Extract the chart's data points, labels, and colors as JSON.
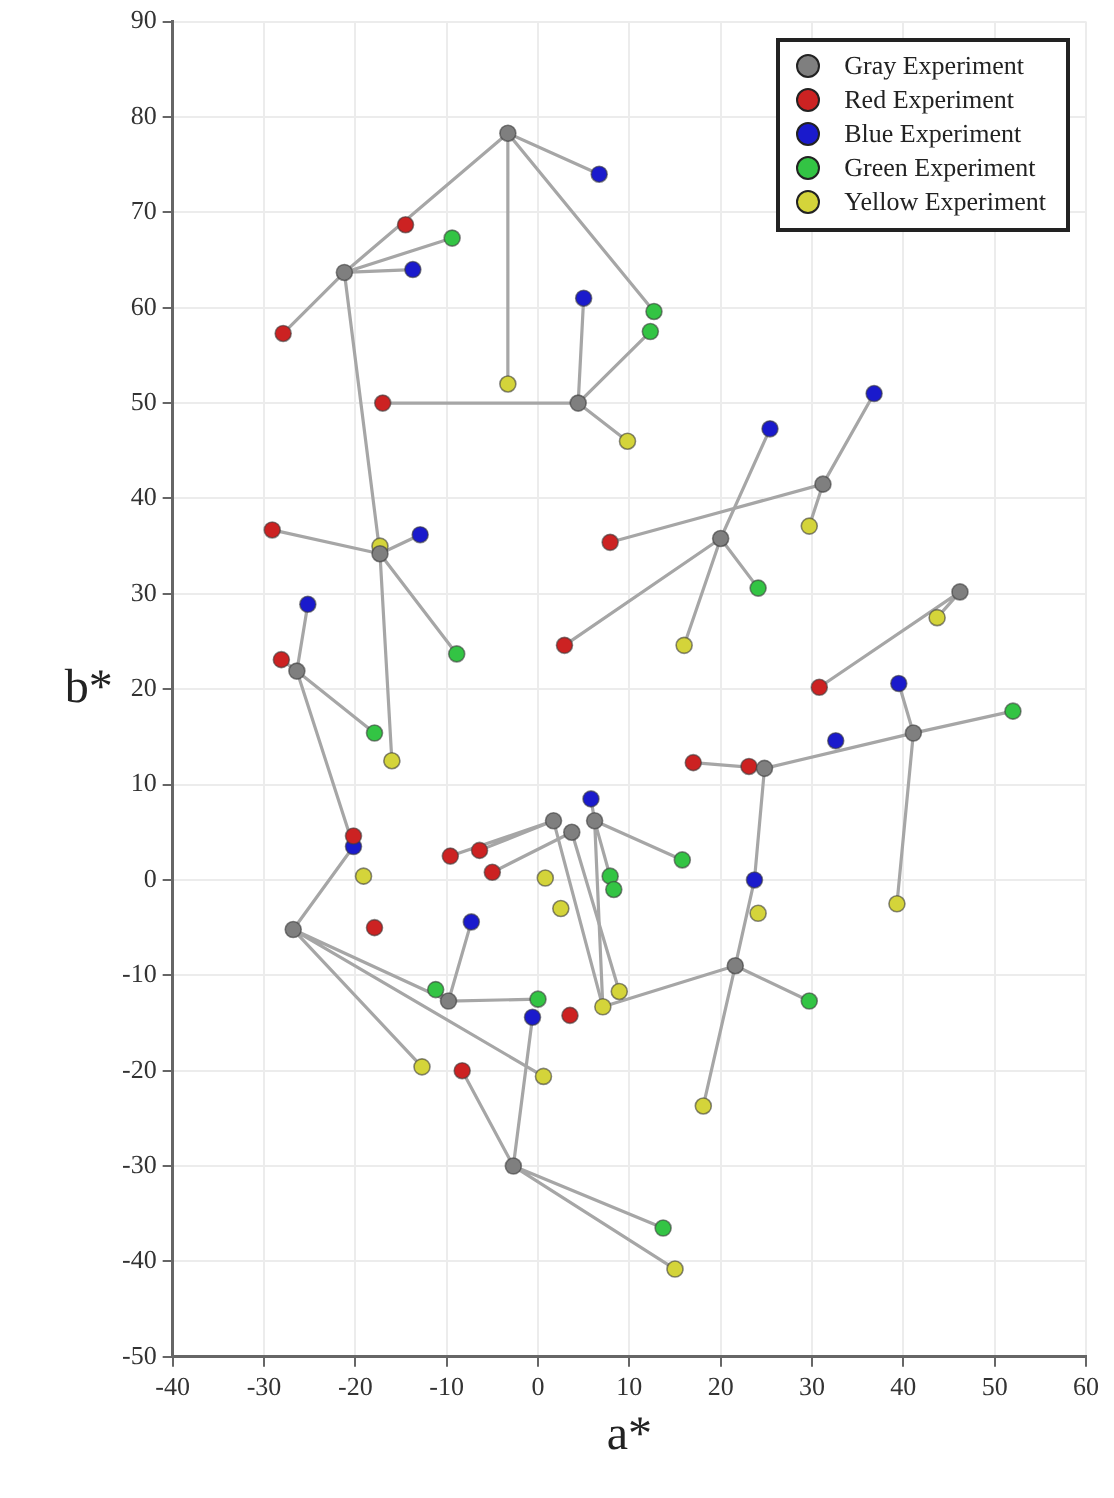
{
  "chart_data": {
    "type": "scatter",
    "xlabel": "a*",
    "ylabel": "b*",
    "xlim": [
      -40,
      60
    ],
    "xticks": [
      -40,
      -30,
      -20,
      -10,
      0,
      10,
      20,
      30,
      40,
      50,
      60
    ],
    "ylim": [
      -50,
      90
    ],
    "yticks": [
      -50,
      -40,
      -30,
      -20,
      -10,
      0,
      10,
      20,
      30,
      40,
      50,
      60,
      70,
      80,
      90
    ],
    "grid": true,
    "legend": "top right",
    "marker": "circle",
    "series": [
      {
        "type": "line",
        "marker": "none",
        "color": "#a6a6a6",
        "x": [
          -3.3,
          6.7,
          -3.3,
          -3.3,
          -3.3,
          12.7,
          -3.3,
          -21.2
        ],
        "values": [
          78.3,
          74,
          78.3,
          52,
          78.3,
          59.6,
          78.3,
          63.7
        ]
      },
      {
        "type": "line",
        "marker": "none",
        "color": "#a6a6a6",
        "x": [
          -21.2,
          -27.9,
          -21.2,
          -13.7,
          -21.2,
          -9.4,
          -21.2,
          -17.3
        ],
        "values": [
          63.7,
          57.3,
          63.7,
          64,
          63.7,
          67.3,
          63.7,
          34.2
        ]
      },
      {
        "type": "line",
        "marker": "none",
        "color": "#a6a6a6",
        "x": [
          4.4,
          -17,
          4.4,
          5,
          4.4,
          9.8,
          4.4,
          12.3
        ],
        "values": [
          50,
          50,
          50,
          61,
          50,
          46,
          50,
          57.5
        ]
      },
      {
        "type": "line",
        "marker": "none",
        "color": "#a6a6a6",
        "x": [
          -17.3,
          -29.1,
          -17.3,
          -12.9,
          -17.3,
          -8.9,
          -17.3,
          -16
        ],
        "values": [
          34.2,
          36.7,
          34.2,
          36.2,
          34.2,
          23.7,
          34.2,
          12.5
        ]
      },
      {
        "type": "line",
        "marker": "none",
        "color": "#a6a6a6",
        "x": [
          -26.4,
          -28.1,
          -26.4,
          -25.2,
          -26.4,
          -17.9,
          -26.4,
          -20.2
        ],
        "values": [
          21.9,
          23.1,
          21.9,
          28.9,
          21.9,
          15.4,
          21.9,
          3.5
        ]
      },
      {
        "type": "line",
        "marker": "none",
        "color": "#a6a6a6",
        "x": [
          31.2,
          36.8,
          31.2,
          29.7,
          31.2,
          7.9
        ],
        "values": [
          41.5,
          51,
          41.5,
          37.1,
          41.5,
          35.4
        ]
      },
      {
        "type": "line",
        "marker": "none",
        "color": "#a6a6a6",
        "x": [
          20,
          25.4,
          20,
          24.1,
          20,
          16,
          20,
          2.9
        ],
        "values": [
          35.8,
          47.3,
          35.8,
          30.6,
          35.8,
          24.6,
          35.8,
          24.6
        ]
      },
      {
        "type": "line",
        "marker": "none",
        "color": "#a6a6a6",
        "x": [
          46.2,
          30.8,
          46.2,
          43.7
        ],
        "values": [
          30.2,
          20.2,
          30.2,
          27.5
        ]
      },
      {
        "type": "line",
        "marker": "none",
        "color": "#a6a6a6",
        "x": [
          41.1,
          39.5,
          41.1,
          52,
          41.1,
          39.3,
          41.1,
          24.8
        ],
        "values": [
          15.4,
          20.6,
          15.4,
          17.7,
          15.4,
          -2.5,
          15.4,
          11.7
        ]
      },
      {
        "type": "line",
        "marker": "none",
        "color": "#a6a6a6",
        "x": [
          24.8,
          17,
          24.8,
          23.7
        ],
        "values": [
          11.7,
          12.3,
          11.7,
          0
        ]
      },
      {
        "type": "line",
        "marker": "none",
        "color": "#a6a6a6",
        "x": [
          1.7,
          -9.6,
          1.7,
          -6.4,
          1.7,
          7.1
        ],
        "values": [
          6.2,
          2.5,
          6.2,
          3.1,
          6.2,
          -13.3
        ]
      },
      {
        "type": "line",
        "marker": "none",
        "color": "#a6a6a6",
        "x": [
          3.7,
          -5,
          3.7,
          8.9
        ],
        "values": [
          5,
          0.8,
          5,
          -11.7
        ]
      },
      {
        "type": "line",
        "marker": "none",
        "color": "#a6a6a6",
        "x": [
          6.2,
          5.8,
          6.2,
          8.3,
          6.2,
          7.1,
          6.2,
          15.8
        ],
        "values": [
          6.2,
          8.5,
          6.2,
          -1,
          6.2,
          -13.3,
          6.2,
          2.1
        ]
      },
      {
        "type": "line",
        "marker": "none",
        "color": "#a6a6a6",
        "x": [
          -26.8,
          -20.2,
          -26.8,
          -9.8,
          -26.8,
          0.6,
          -26.8,
          -12.7
        ],
        "values": [
          -5.2,
          3.5,
          -5.2,
          -12.7,
          -5.2,
          -20.6,
          -5.2,
          -19.6
        ]
      },
      {
        "type": "line",
        "marker": "none",
        "color": "#a6a6a6",
        "x": [
          -9.8,
          -7.3,
          -9.8,
          0,
          -9.8,
          -11.2
        ],
        "values": [
          -12.7,
          -4.4,
          -12.7,
          -12.5,
          -12.7,
          -11.5
        ]
      },
      {
        "type": "line",
        "marker": "none",
        "color": "#a6a6a6",
        "x": [
          -2.7,
          -8.3,
          -2.7,
          -0.6,
          -2.7,
          13.7,
          -2.7,
          15
        ],
        "values": [
          -30,
          -20,
          -30,
          -14.4,
          -30,
          -36.5,
          -30,
          -40.8
        ]
      },
      {
        "type": "line",
        "marker": "none",
        "color": "#a6a6a6",
        "x": [
          21.6,
          23.7,
          21.6,
          29.7,
          21.6,
          18.1,
          21.6,
          7.1
        ],
        "values": [
          -9,
          0,
          -9,
          -12.7,
          -9,
          -23.7,
          -9,
          -13.3
        ]
      },
      {
        "name": "Gray Experiment",
        "color": "#7f7f7f",
        "x": [
          -3.3,
          -21.2,
          4.4,
          -17.3,
          -26.4,
          31.2,
          20,
          46.2,
          41.1,
          24.8,
          1.7,
          3.7,
          6.2,
          -26.8,
          -9.8,
          -2.7,
          21.6
        ],
        "values": [
          78.3,
          63.7,
          50,
          34.2,
          21.9,
          41.5,
          35.8,
          30.2,
          15.4,
          11.7,
          6.2,
          5,
          6.2,
          -5.2,
          -12.7,
          -30,
          -9
        ]
      },
      {
        "name": "Red Experiment",
        "color": "#cc2222",
        "x": [
          -14.5,
          -27.9,
          -17,
          -29.1,
          7.9,
          2.9,
          -28.1,
          -20.2,
          -9.6,
          -6.4,
          -5,
          30.8,
          17,
          23.1,
          -17.9,
          -8.3,
          3.5
        ],
        "values": [
          68.7,
          57.3,
          50,
          36.7,
          35.4,
          24.6,
          23.1,
          4.6,
          2.5,
          3.1,
          0.8,
          20.2,
          12.3,
          11.9,
          -5,
          -20,
          -14.2
        ]
      },
      {
        "name": "Blue Experiment",
        "color": "#1a1acc",
        "x": [
          6.7,
          -13.7,
          5,
          25.4,
          36.8,
          -12.9,
          -25.2,
          -20.2,
          5.8,
          39.5,
          32.6,
          23.7,
          -7.3,
          -0.6
        ],
        "values": [
          74,
          64,
          61,
          47.3,
          51,
          36.2,
          28.9,
          3.5,
          8.5,
          20.6,
          14.6,
          0,
          -4.4,
          -14.4
        ]
      },
      {
        "name": "Green Experiment",
        "color": "#33c444",
        "x": [
          -9.4,
          12.7,
          12.3,
          -8.9,
          -17.9,
          7.9,
          8.3,
          24.1,
          52,
          15.8,
          -11.2,
          0,
          29.7,
          13.7
        ],
        "values": [
          67.3,
          59.6,
          57.5,
          23.7,
          15.4,
          0.4,
          -1,
          30.6,
          17.7,
          2.1,
          -11.5,
          -12.5,
          -12.7,
          -36.5
        ]
      },
      {
        "name": "Yellow Experiment",
        "color": "#d4d43a",
        "x": [
          -3.3,
          9.8,
          -17.3,
          -16,
          -19.1,
          0.8,
          29.7,
          16,
          43.7,
          39.3,
          24.1,
          18.1,
          15,
          -12.7,
          0.6,
          7.1,
          8.9,
          2.5
        ],
        "values": [
          52,
          46,
          35,
          12.5,
          0.4,
          0.2,
          37.1,
          24.6,
          27.5,
          -2.5,
          -3.5,
          -23.7,
          -40.8,
          -19.6,
          -20.6,
          -13.3,
          -11.7,
          -3
        ]
      }
    ]
  }
}
